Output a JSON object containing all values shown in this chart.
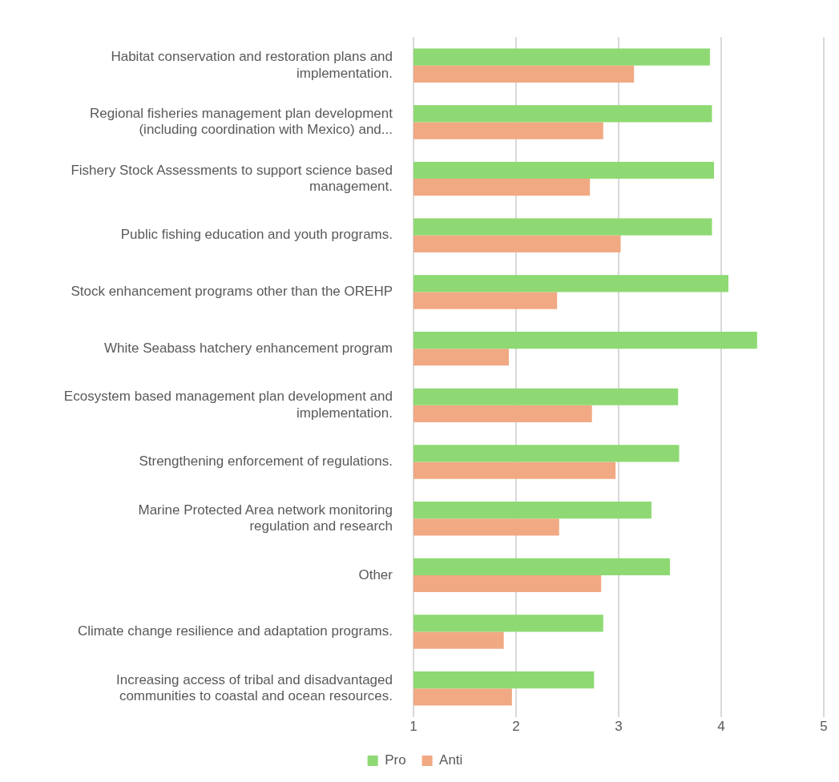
{
  "chart_data": {
    "type": "bar",
    "orientation": "horizontal",
    "categories": [
      "Habitat conservation and restoration plans and implementation.",
      "Regional fisheries management plan development (including coordination with Mexico) and...",
      "Fishery Stock Assessments to support science based management.",
      "Public fishing education and youth programs.",
      "Stock enhancement programs other than the OREHP",
      "White Seabass hatchery enhancement program",
      "Ecosystem based management plan development and implementation.",
      "Strengthening enforcement of regulations.",
      "Marine Protected Area network monitoring regulation and research",
      "Other",
      "Climate change resilience and adaptation programs.",
      "Increasing access of tribal and disadvantaged communities to coastal and ocean resources."
    ],
    "series": [
      {
        "name": "Pro",
        "color": "#8ed973",
        "values": [
          3.89,
          3.91,
          3.93,
          3.91,
          4.07,
          4.35,
          3.58,
          3.59,
          3.32,
          3.5,
          2.85,
          2.76
        ]
      },
      {
        "name": "Anti",
        "color": "#f1a983",
        "values": [
          3.15,
          2.85,
          2.72,
          3.02,
          2.4,
          1.93,
          2.74,
          2.97,
          2.42,
          2.83,
          1.88,
          1.96
        ]
      }
    ],
    "xlim": [
      1,
      5
    ],
    "xticks": [
      1,
      2,
      3,
      4,
      5
    ],
    "grid": "x",
    "legend": "bottom"
  }
}
